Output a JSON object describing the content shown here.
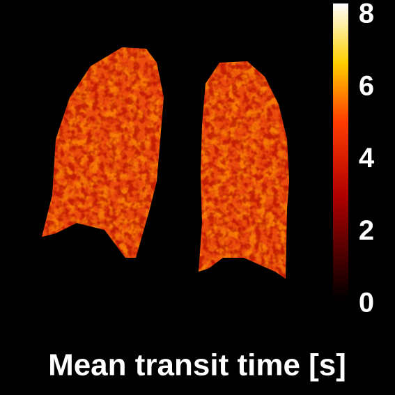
{
  "chart_data": {
    "type": "image-map",
    "colorbar_label": "Mean transit time [s]",
    "colormap": "hot",
    "clim": [
      0,
      8
    ],
    "cticks": [
      0,
      2,
      4,
      6,
      8
    ]
  }
}
